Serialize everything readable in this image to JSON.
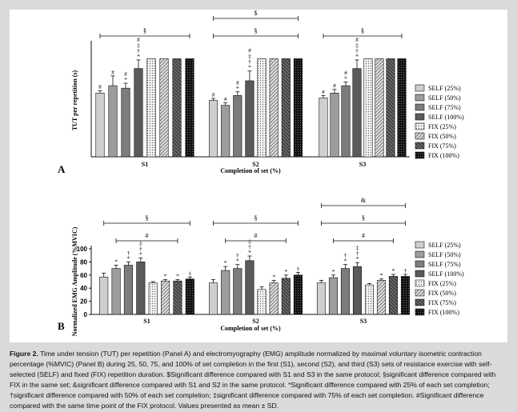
{
  "caption": {
    "label": "Figure 2.",
    "text": "Time under tension (TUT) per repetition (Panel A) and electromyography (EMG) amplitude normalized by maximal voluntary isometric contraction percentage (%MVIC) (Panel B) during 25, 50, 75, and 100% of set completion in the first (S1), second (S2), and third (S3) sets of resistance exercise with self-selected (SELF) and fixed (FIX) repetition duration. $Significant difference compared with S1 and S3 in the same protocol; §significant difference compared with FIX in the same set; &significant difference compared with S1 and S2 in the same protocol. *Significant difference compared with 25% of each set completion; †significant difference compared with 50% of each set completion; ‡significant difference compared with 75% of each set completion. #Significant difference compared with the same time point of the FIX protocol. Values presented as mean ± SD."
  },
  "legend_entries": [
    "SELF (25%)",
    "SELF (50%)",
    "SELF (75%)",
    "SELF (100%)",
    "FIX (25%)",
    "FIX (50%)",
    "FIX (75%)",
    "FIX (100%)"
  ],
  "series_colors": [
    "#cfcfcf",
    "#9d9d9d",
    "#7c7c7c",
    "#5a5a5a",
    "#ececec",
    "#d0d0d0",
    "#3a3a3a",
    "#111111"
  ],
  "chart_data": [
    {
      "panel": "A",
      "type": "bar",
      "ylabel": "TUT per repetition (s)",
      "xlabel": "Completion of set  (%)",
      "categories": [
        "S1",
        "S2",
        "S3"
      ],
      "ylim": [
        0,
        4.6
      ],
      "series": [
        {
          "name": "SELF (25%)",
          "values": [
            2.6,
            2.3,
            2.4
          ],
          "errors": [
            0.1,
            0.08,
            0.1
          ],
          "marks": [
            "#",
            "#",
            "#"
          ]
        },
        {
          "name": "SELF (50%)",
          "values": [
            2.9,
            2.1,
            2.6
          ],
          "errors": [
            0.4,
            0.1,
            0.15
          ],
          "marks": [
            "#",
            "#",
            "#"
          ]
        },
        {
          "name": "SELF (75%)",
          "values": [
            2.8,
            2.5,
            2.9
          ],
          "errors": [
            0.2,
            0.15,
            0.15
          ],
          "marks": [
            "#\n*",
            "#\n*",
            "#\n*"
          ]
        },
        {
          "name": "SELF (100%)",
          "values": [
            3.6,
            3.1,
            3.6
          ],
          "errors": [
            0.35,
            0.4,
            0.35
          ],
          "marks": [
            "#\n‡\n†\n*",
            "#\n‡\n†\n*",
            "#\n‡\n†\n*"
          ]
        },
        {
          "name": "FIX (25%)",
          "values": [
            4.0,
            4.0,
            4.0
          ],
          "errors": [
            0,
            0,
            0
          ],
          "marks": [
            "",
            "",
            ""
          ]
        },
        {
          "name": "FIX (50%)",
          "values": [
            4.0,
            4.0,
            4.0
          ],
          "errors": [
            0,
            0,
            0
          ],
          "marks": [
            "",
            "",
            ""
          ]
        },
        {
          "name": "FIX (75%)",
          "values": [
            4.0,
            4.0,
            4.0
          ],
          "errors": [
            0,
            0,
            0
          ],
          "marks": [
            "",
            "",
            ""
          ]
        },
        {
          "name": "FIX (100%)",
          "values": [
            4.0,
            4.0,
            4.0
          ],
          "errors": [
            0,
            0,
            0
          ],
          "marks": [
            "",
            "",
            ""
          ]
        }
      ],
      "brackets": [
        {
          "group": 0,
          "from": 0,
          "to": 7,
          "level": 1,
          "symbol": "§"
        },
        {
          "group": 1,
          "from": 0,
          "to": 7,
          "level": 1,
          "symbol": "§"
        },
        {
          "group": 1,
          "from": 0,
          "to": 7,
          "level": 2,
          "symbol": "$"
        },
        {
          "group": 2,
          "from": 0,
          "to": 7,
          "level": 1,
          "symbol": "§"
        }
      ]
    },
    {
      "panel": "B",
      "type": "bar",
      "ylabel": "Normalized EMG Amplitude (%MVIC)",
      "xlabel": "Completion of set  (%)",
      "categories": [
        "S1",
        "S2",
        "S3"
      ],
      "ylim": [
        0,
        100
      ],
      "yticks": [
        0,
        20,
        40,
        60,
        80,
        100
      ],
      "series": [
        {
          "name": "SELF (25%)",
          "values": [
            57,
            48,
            48
          ],
          "errors": [
            6,
            5,
            4
          ],
          "marks": [
            "",
            "",
            ""
          ]
        },
        {
          "name": "SELF (50%)",
          "values": [
            70,
            67,
            56
          ],
          "errors": [
            5,
            6,
            4
          ],
          "marks": [
            "*",
            "*",
            "*"
          ]
        },
        {
          "name": "SELF (75%)",
          "values": [
            75,
            70,
            70
          ],
          "errors": [
            5,
            6,
            6
          ],
          "marks": [
            "†\n*",
            "†\n*",
            "†\n*"
          ]
        },
        {
          "name": "SELF (100%)",
          "values": [
            80,
            82,
            73
          ],
          "errors": [
            6,
            7,
            6
          ],
          "marks": [
            "‡\n†\n*",
            "‡\n†\n*",
            "‡\n†\n*"
          ]
        },
        {
          "name": "FIX (25%)",
          "values": [
            48,
            38,
            45
          ],
          "errors": [
            2,
            4,
            2
          ],
          "marks": [
            "",
            "",
            ""
          ]
        },
        {
          "name": "FIX (50%)",
          "values": [
            51,
            48,
            52
          ],
          "errors": [
            2,
            4,
            2
          ],
          "marks": [
            "*",
            "*",
            "*"
          ]
        },
        {
          "name": "FIX (75%)",
          "values": [
            51,
            55,
            58
          ],
          "errors": [
            2,
            5,
            3
          ],
          "marks": [
            "*",
            "*",
            "*"
          ]
        },
        {
          "name": "FIX (100%)",
          "values": [
            54,
            60,
            58
          ],
          "errors": [
            3,
            4,
            3
          ],
          "marks": [
            "†",
            "†",
            "†"
          ]
        }
      ],
      "brackets": [
        {
          "group": 0,
          "from": 0,
          "to": 7,
          "level": 2,
          "symbol": "§"
        },
        {
          "group": 0,
          "from": 1,
          "to": 6,
          "level": 1,
          "symbol": "#"
        },
        {
          "group": 1,
          "from": 0,
          "to": 7,
          "level": 2,
          "symbol": "§"
        },
        {
          "group": 1,
          "from": 1,
          "to": 6,
          "level": 1,
          "symbol": "#"
        },
        {
          "group": 2,
          "from": 0,
          "to": 7,
          "level": 2,
          "symbol": "§"
        },
        {
          "group": 2,
          "from": 0,
          "to": 7,
          "level": 3,
          "symbol": "&"
        },
        {
          "group": 2,
          "from": 1,
          "to": 6,
          "level": 1,
          "symbol": "#"
        }
      ]
    }
  ]
}
